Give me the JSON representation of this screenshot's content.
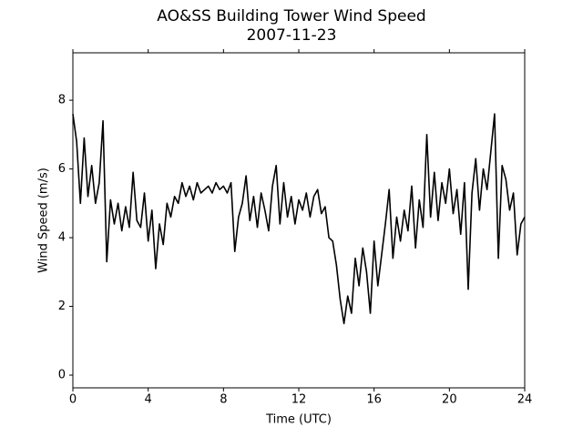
{
  "chart_data": {
    "type": "line",
    "title": "AO&SS Building Tower Wind Speed",
    "subtitle": "2007-11-23",
    "x_label": "Time (UTC)",
    "y_label": "Wind Speed (m/s)",
    "xlim": [
      0,
      24
    ],
    "xticks": [
      0,
      4,
      8,
      12,
      16,
      20,
      24
    ],
    "ylim": [
      -0.37,
      9.38
    ],
    "yticks": [
      0,
      2,
      4,
      6,
      8
    ],
    "grid": false,
    "color": "#000000",
    "x": [
      0,
      0.2,
      0.4,
      0.6,
      0.8,
      1,
      1.2,
      1.4,
      1.6,
      1.8,
      2,
      2.2,
      2.4,
      2.6,
      2.8,
      3,
      3.2,
      3.4,
      3.6,
      3.8,
      4,
      4.2,
      4.4,
      4.6,
      4.8,
      5,
      5.2,
      5.4,
      5.6,
      5.8,
      6,
      6.2,
      6.4,
      6.6,
      6.8,
      7,
      7.2,
      7.4,
      7.6,
      7.8,
      8,
      8.2,
      8.4,
      8.6,
      8.8,
      9,
      9.2,
      9.4,
      9.6,
      9.8,
      10,
      10.2,
      10.4,
      10.6,
      10.8,
      11,
      11.2,
      11.4,
      11.6,
      11.8,
      12,
      12.2,
      12.4,
      12.6,
      12.8,
      13,
      13.2,
      13.4,
      13.6,
      13.8,
      14,
      14.2,
      14.4,
      14.6,
      14.8,
      15,
      15.2,
      15.4,
      15.6,
      15.8,
      16,
      16.2,
      16.4,
      16.6,
      16.8,
      17,
      17.2,
      17.4,
      17.6,
      17.8,
      18,
      18.2,
      18.4,
      18.6,
      18.8,
      19,
      19.2,
      19.4,
      19.6,
      19.8,
      20,
      20.2,
      20.4,
      20.6,
      20.8,
      21,
      21.2,
      21.4,
      21.6,
      21.8,
      22,
      22.2,
      22.4,
      22.6,
      22.8,
      23,
      23.2,
      23.4,
      23.6,
      23.8,
      24
    ],
    "values": [
      7.6,
      6.8,
      5.0,
      6.9,
      5.2,
      6.1,
      5.0,
      5.6,
      7.4,
      3.3,
      5.1,
      4.4,
      5.0,
      4.2,
      4.9,
      4.3,
      5.9,
      4.5,
      4.3,
      5.3,
      3.9,
      4.8,
      3.1,
      4.4,
      3.8,
      5.0,
      4.6,
      5.2,
      5.0,
      5.6,
      5.2,
      5.5,
      5.1,
      5.6,
      5.3,
      5.4,
      5.5,
      5.3,
      5.6,
      5.4,
      5.5,
      5.3,
      5.6,
      3.6,
      4.6,
      5.0,
      5.8,
      4.5,
      5.2,
      4.3,
      5.3,
      4.8,
      4.2,
      5.5,
      6.1,
      4.4,
      5.6,
      4.6,
      5.2,
      4.4,
      5.1,
      4.8,
      5.3,
      4.6,
      5.2,
      5.4,
      4.7,
      4.9,
      4.0,
      3.9,
      3.2,
      2.2,
      1.5,
      2.3,
      1.8,
      3.4,
      2.6,
      3.7,
      3.0,
      1.8,
      3.9,
      2.6,
      3.5,
      4.4,
      5.4,
      3.4,
      4.6,
      3.9,
      4.8,
      4.2,
      5.5,
      3.7,
      5.1,
      4.3,
      7.0,
      4.6,
      5.9,
      4.5,
      5.6,
      5.0,
      6.0,
      4.7,
      5.4,
      4.1,
      5.6,
      2.5,
      5.3,
      6.3,
      4.8,
      6.0,
      5.4,
      6.5,
      7.6,
      3.4,
      6.1,
      5.7,
      4.8,
      5.3,
      3.5,
      4.4,
      4.6
    ]
  }
}
